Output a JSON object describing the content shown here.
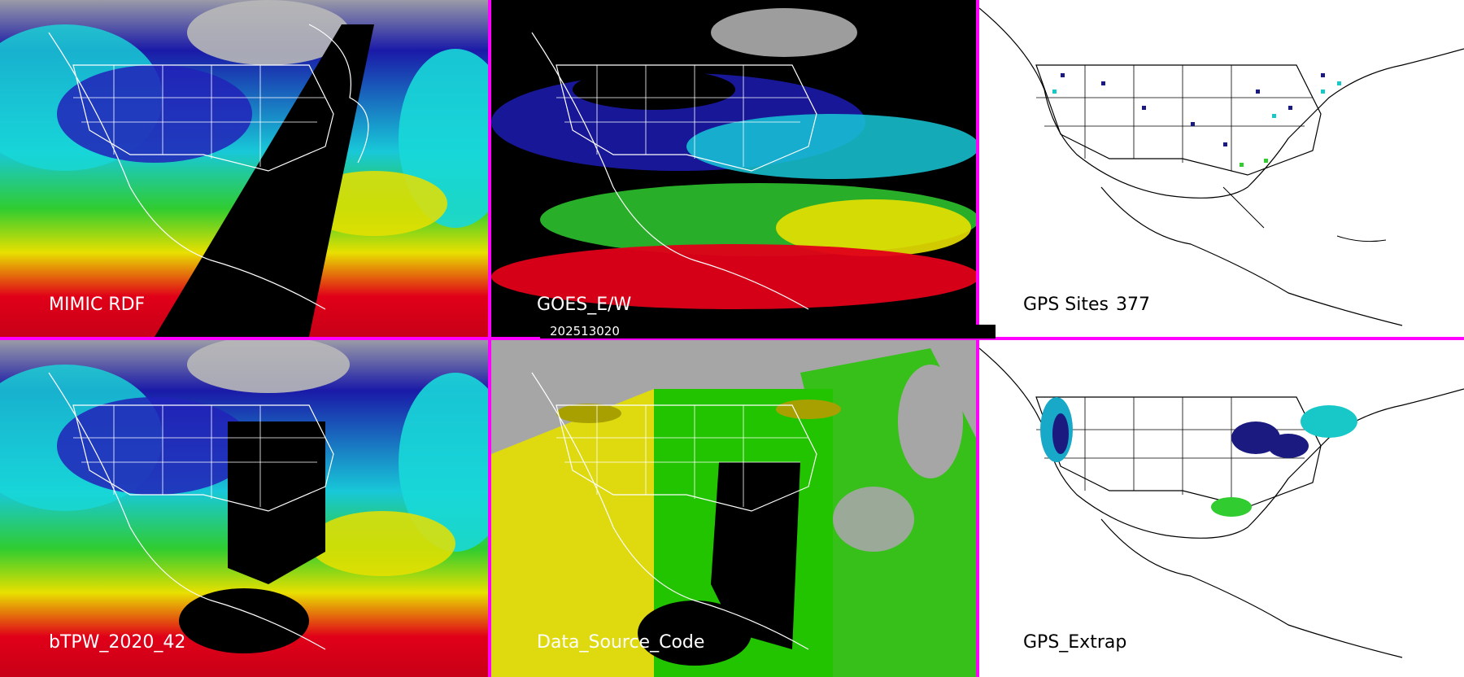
{
  "panels": [
    {
      "id": "mimic",
      "label": "MIMIC RDF"
    },
    {
      "id": "goes",
      "label": "GOES_E/W"
    },
    {
      "id": "gps-sites",
      "label": "GPS Sites",
      "count": "377"
    },
    {
      "id": "btpw",
      "label": "bTPW_2020_42"
    },
    {
      "id": "dsc",
      "label": "Data_Source_Code"
    },
    {
      "id": "gps-extrap",
      "label": "GPS_Extrap"
    }
  ],
  "timestamp": "202513020",
  "colors": {
    "separator": "#ff00ff",
    "scale_blue": "#1a1aa8",
    "scale_cyan": "#18d8d8",
    "scale_green": "#30cc30",
    "scale_yellow": "#e8e000",
    "scale_red": "#e00018",
    "no_data": "#000000",
    "gray_cloud": "#a8a8a8",
    "dsc_yellow": "#e6e000",
    "dsc_green": "#22c400",
    "dsc_gray": "#a6a6a6"
  }
}
